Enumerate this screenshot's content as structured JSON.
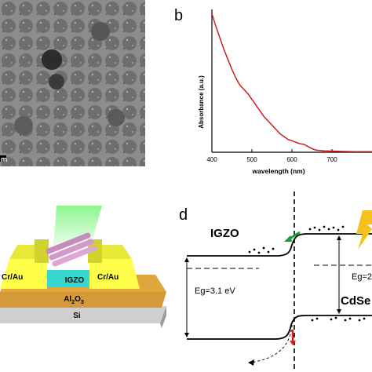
{
  "panels": {
    "b": {
      "letter": "b",
      "ylabel": "Absorbance (a.u.)",
      "xlabel": "wavelength (nm)",
      "xticks": [
        "400",
        "500",
        "600",
        "700"
      ]
    },
    "d": {
      "letter": "d",
      "igzo_label": "IGZO",
      "cdse_label": "CdSe",
      "eg_igzo": "Eg=3.1 eV",
      "eg_cdse": "Eg=2"
    },
    "c": {
      "cr_au_left": "Cr/Au",
      "cr_au_right": "Cr/Au",
      "igzo": "IGZO",
      "al2o3_base": "Al",
      "al2o3_sub": "2",
      "al2o3_tail": "O",
      "al2o3_sub2": "3",
      "si": "Si"
    },
    "a": {
      "scale_fragment": "m"
    }
  },
  "chart_data": {
    "type": "line",
    "title": "",
    "xlabel": "wavelength (nm)",
    "ylabel": "Absorbance (a.u.)",
    "xlim": [
      400,
      800
    ],
    "ylim": [
      0,
      1
    ],
    "grid": false,
    "series": [
      {
        "color": "#cc1f1f",
        "x": [
          400,
          410,
          420,
          430,
          440,
          450,
          460,
          470,
          480,
          490,
          500,
          510,
          520,
          530,
          540,
          550,
          560,
          570,
          580,
          590,
          600,
          610,
          620,
          630,
          640,
          650,
          660,
          680,
          700,
          720,
          740,
          760,
          780,
          800
        ],
        "y": [
          0.97,
          0.88,
          0.8,
          0.72,
          0.65,
          0.58,
          0.52,
          0.47,
          0.44,
          0.41,
          0.37,
          0.33,
          0.29,
          0.25,
          0.22,
          0.19,
          0.16,
          0.13,
          0.11,
          0.09,
          0.08,
          0.07,
          0.06,
          0.055,
          0.04,
          0.025,
          0.015,
          0.01,
          0.008,
          0.006,
          0.005,
          0.004,
          0.004,
          0.004
        ]
      }
    ]
  }
}
